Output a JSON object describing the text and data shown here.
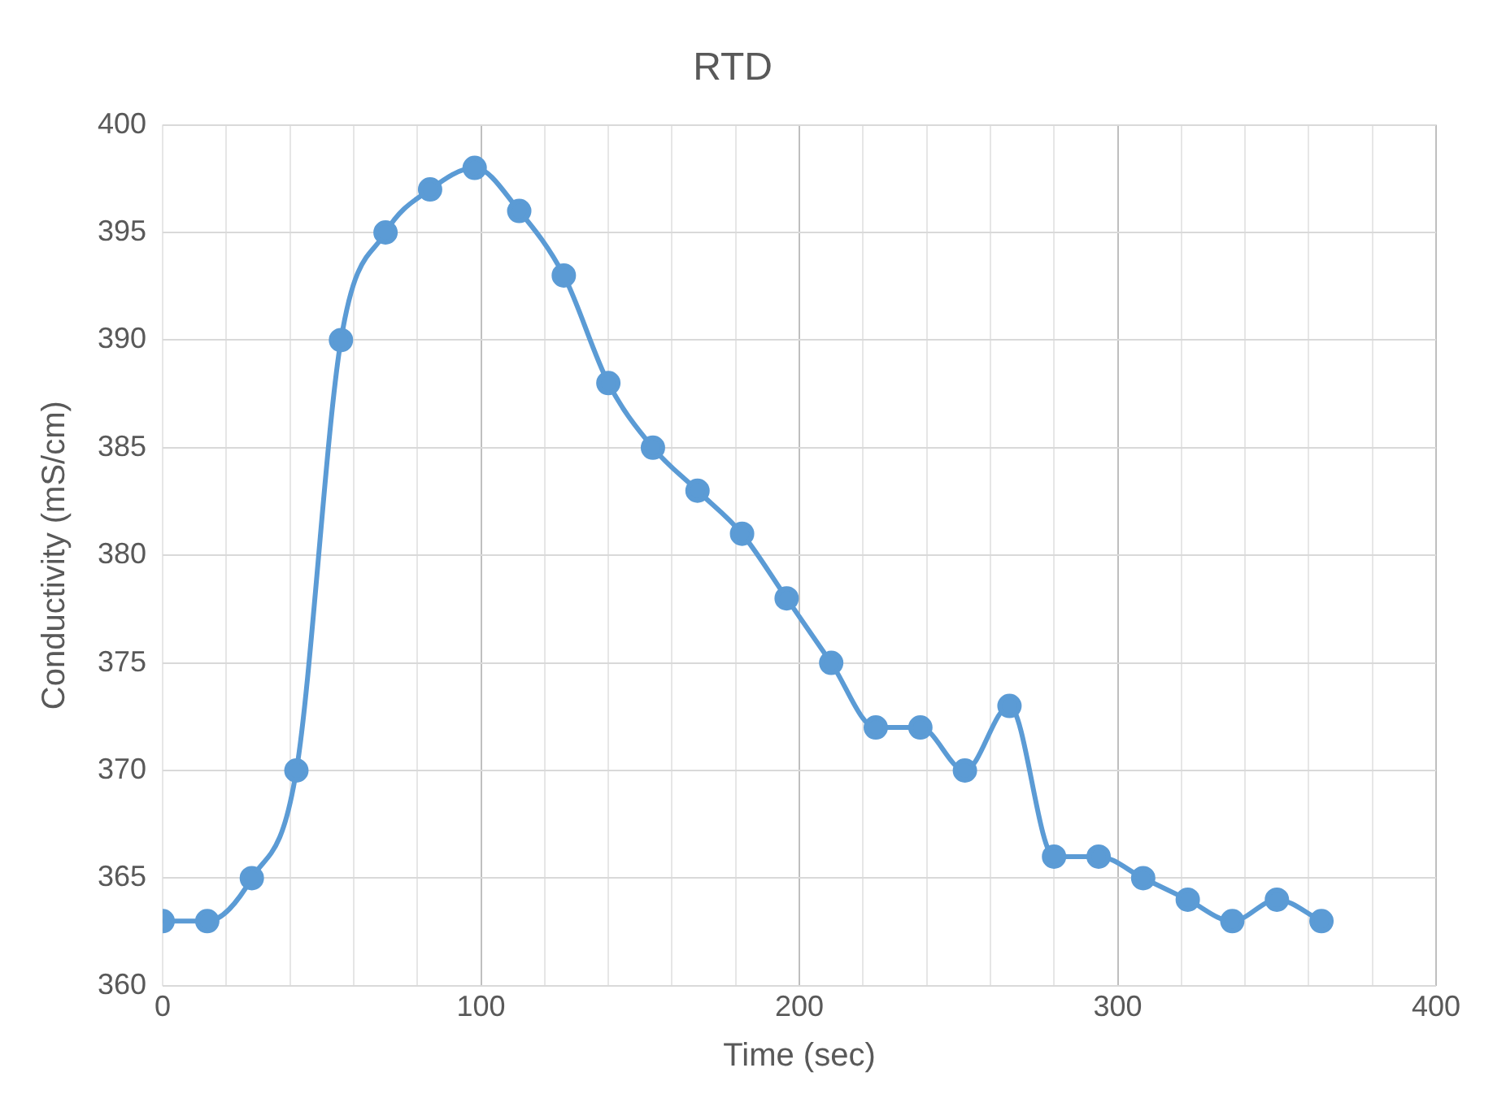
{
  "chart_data": {
    "type": "line",
    "title": "RTD",
    "xlabel": "Time (sec)",
    "ylabel": "Conductivity (mS/cm)",
    "x": [
      0,
      14,
      28,
      42,
      56,
      70,
      84,
      98,
      112,
      126,
      140,
      154,
      168,
      182,
      196,
      210,
      224,
      238,
      252,
      266,
      280,
      294,
      308,
      322,
      336,
      350,
      364
    ],
    "series": [
      {
        "color": "#5b9bd5",
        "values": [
          363,
          363,
          365,
          370,
          390,
          395,
          397,
          398,
          396,
          393,
          388,
          385,
          383,
          381,
          378,
          375,
          372,
          372,
          370,
          373,
          366,
          366,
          365,
          364,
          363,
          364,
          363
        ]
      }
    ],
    "xlim": [
      0,
      400
    ],
    "xticks": [
      0,
      {
        "value": 20,
        "label": null
      },
      {
        "value": 40,
        "label": null
      },
      {
        "value": 60,
        "label": null
      },
      {
        "value": 80,
        "label": null
      },
      100,
      {
        "value": 120,
        "label": null
      },
      {
        "value": 140,
        "label": null
      },
      {
        "value": 160,
        "label": null
      },
      {
        "value": 180,
        "label": null
      },
      200,
      {
        "value": 220,
        "label": null
      },
      {
        "value": 240,
        "label": null
      },
      {
        "value": 260,
        "label": null
      },
      {
        "value": 280,
        "label": null
      },
      300,
      {
        "value": 320,
        "label": null
      },
      {
        "value": 340,
        "label": null
      },
      {
        "value": 360,
        "label": null
      },
      {
        "value": 380,
        "label": null
      },
      400
    ],
    "ylim": [
      360,
      400
    ],
    "yticks": [
      360,
      365,
      370,
      375,
      380,
      385,
      390,
      395,
      400
    ],
    "grid": true,
    "legend": false,
    "marker": "circle",
    "line_style": "solid"
  }
}
